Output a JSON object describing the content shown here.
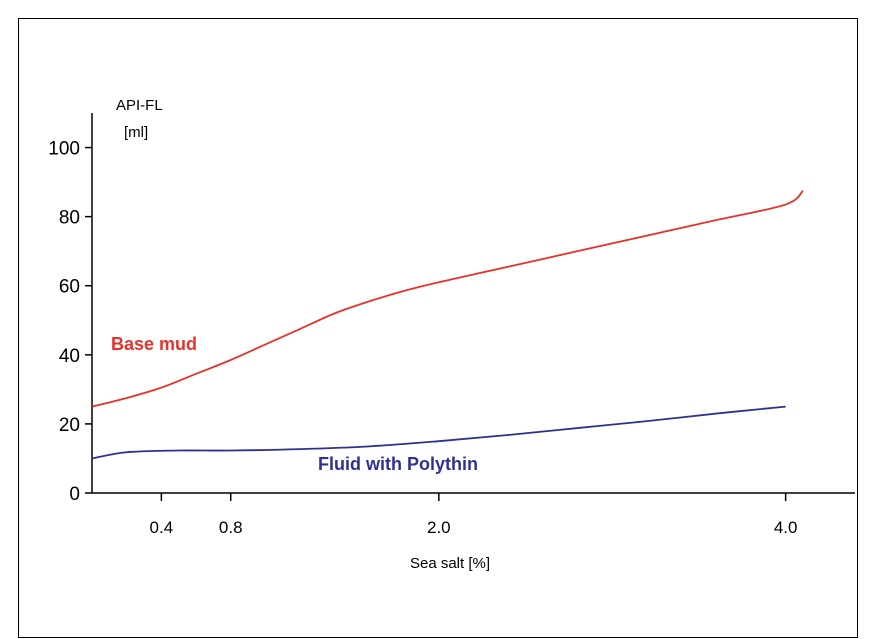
{
  "chart_data": {
    "type": "line",
    "title": "",
    "xlabel": "Sea salt [%]",
    "ylabel_line1": "API-FL",
    "ylabel_line2": "[ml]",
    "xlim": [
      0,
      4.4
    ],
    "ylim": [
      0,
      110
    ],
    "x_ticks": [
      {
        "value": 0.4,
        "label": "0.4"
      },
      {
        "value": 0.8,
        "label": "0.8"
      },
      {
        "value": 2.0,
        "label": "2.0"
      },
      {
        "value": 4.0,
        "label": "4.0"
      }
    ],
    "y_ticks": [
      {
        "value": 0,
        "label": "0"
      },
      {
        "value": 20,
        "label": "20"
      },
      {
        "value": 40,
        "label": "40"
      },
      {
        "value": 60,
        "label": "60"
      },
      {
        "value": 80,
        "label": "80"
      },
      {
        "value": 100,
        "label": "100"
      }
    ],
    "series": [
      {
        "name": "Base mud",
        "color": "#e8312a",
        "points": [
          [
            0.0,
            25
          ],
          [
            0.2,
            27.5
          ],
          [
            0.4,
            30.5
          ],
          [
            0.6,
            34.5
          ],
          [
            0.8,
            38.5
          ],
          [
            1.0,
            43
          ],
          [
            1.2,
            47.5
          ],
          [
            1.4,
            52
          ],
          [
            1.6,
            55.5
          ],
          [
            1.8,
            58.5
          ],
          [
            2.0,
            61
          ],
          [
            2.4,
            65.5
          ],
          [
            2.8,
            70
          ],
          [
            3.2,
            74.5
          ],
          [
            3.6,
            79
          ],
          [
            4.0,
            83.5
          ],
          [
            4.1,
            87.5
          ]
        ]
      },
      {
        "name": "Fluid with Polythin",
        "color": "#2e3192",
        "points": [
          [
            0.0,
            10
          ],
          [
            0.2,
            11.8
          ],
          [
            0.5,
            12.3
          ],
          [
            0.8,
            12.3
          ],
          [
            1.2,
            12.7
          ],
          [
            1.6,
            13.5
          ],
          [
            2.0,
            15
          ],
          [
            2.4,
            16.8
          ],
          [
            2.8,
            18.8
          ],
          [
            3.2,
            20.8
          ],
          [
            3.6,
            23
          ],
          [
            4.0,
            25
          ]
        ]
      }
    ]
  }
}
